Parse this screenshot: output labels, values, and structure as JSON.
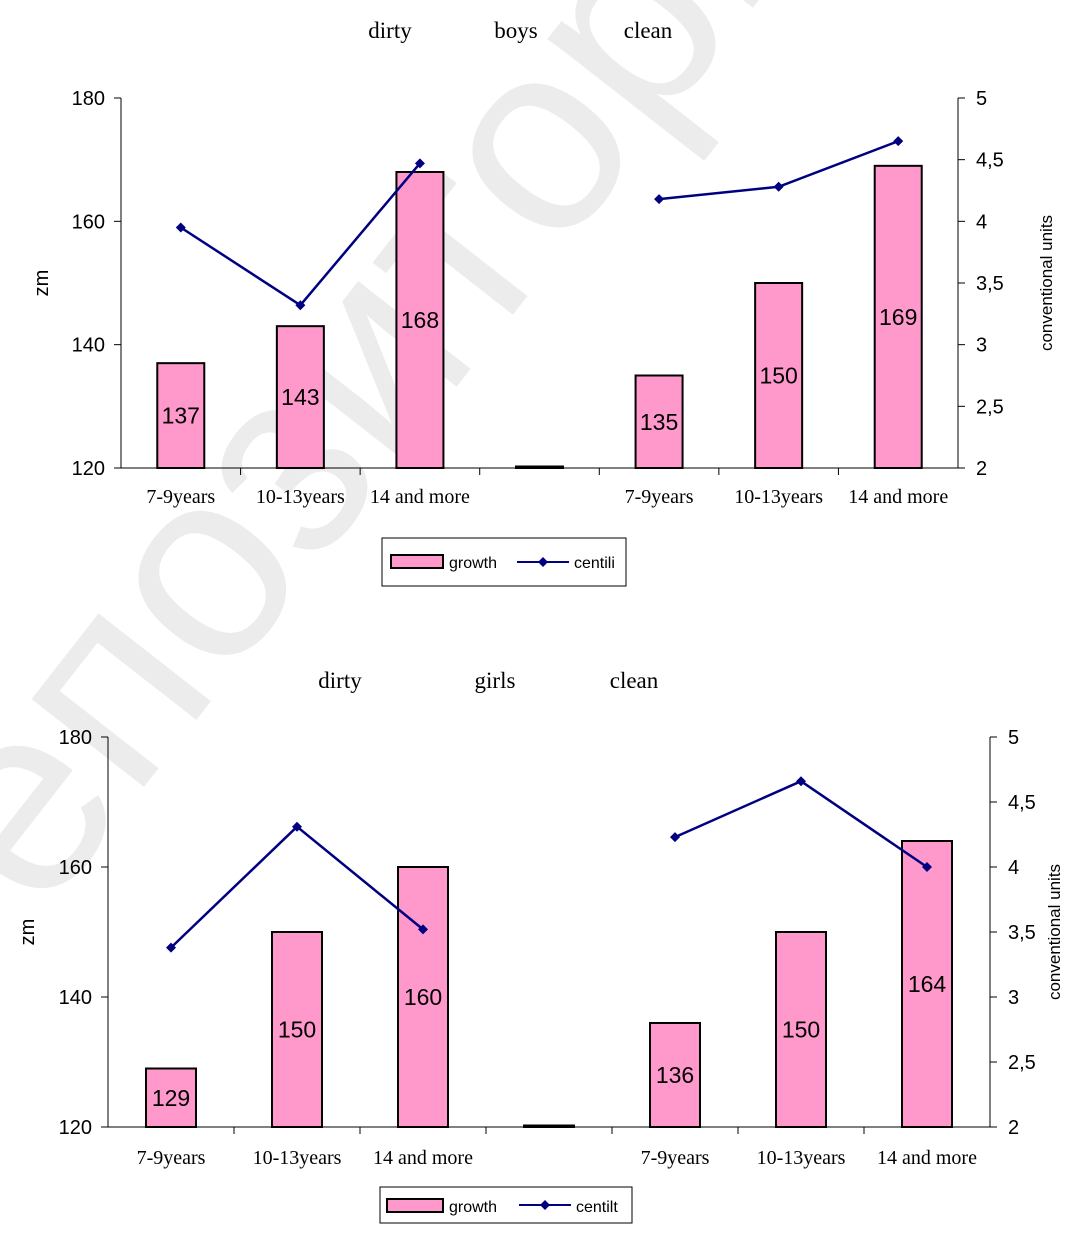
{
  "colors": {
    "bar_fill": "#ff99cc",
    "bar_stroke": "#000000",
    "line": "#000080",
    "axis": "#000000",
    "background": "#ffffff"
  },
  "watermark": "епозиторий Кар",
  "chart_data": [
    {
      "type": "bar",
      "group_titles": [
        "dirty",
        "boys",
        "clean"
      ],
      "categories": [
        "7-9years",
        "10-13years",
        "14 and more",
        "",
        "7-9years",
        "10-13years",
        "14 and more"
      ],
      "ylabel": "zm",
      "y2label": "conventional units",
      "ylim": [
        120,
        180
      ],
      "y_ticks": [
        "120",
        "140",
        "160",
        "180"
      ],
      "y2lim": [
        2,
        5
      ],
      "y2_ticks": [
        "2",
        "2,5",
        "3",
        "3,5",
        "4",
        "4,5",
        "5"
      ],
      "legend_position": "bottom-center",
      "series": [
        {
          "name": "growth",
          "kind": "bar",
          "axis": "left",
          "values": [
            137,
            143,
            168,
            120,
            135,
            150,
            169
          ],
          "labels": [
            "137",
            "143",
            "168",
            "",
            "135",
            "150",
            "169"
          ]
        },
        {
          "name": "centili",
          "kind": "line",
          "axis": "right",
          "values": [
            3.95,
            3.32,
            4.47,
            null,
            4.18,
            4.28,
            4.65
          ]
        }
      ]
    },
    {
      "type": "bar",
      "group_titles": [
        "dirty",
        "girls",
        "clean"
      ],
      "categories": [
        "7-9years",
        "10-13years",
        "14 and more",
        "",
        "7-9years",
        "10-13years",
        "14 and more"
      ],
      "ylabel": "zm",
      "y2label": "conventional units",
      "ylim": [
        120,
        180
      ],
      "y_ticks": [
        "120",
        "140",
        "160",
        "180"
      ],
      "y2lim": [
        2,
        5
      ],
      "y2_ticks": [
        "2",
        "2,5",
        "3",
        "3,5",
        "4",
        "4,5",
        "5"
      ],
      "legend_position": "bottom-center",
      "series": [
        {
          "name": "growth",
          "kind": "bar",
          "axis": "left",
          "values": [
            129,
            150,
            160,
            120,
            136,
            150,
            164
          ],
          "labels": [
            "129",
            "150",
            "160",
            "",
            "136",
            "150",
            "164"
          ]
        },
        {
          "name": "centilt",
          "kind": "line",
          "axis": "right",
          "values": [
            3.38,
            4.31,
            3.52,
            null,
            4.23,
            4.66,
            4.0
          ]
        }
      ]
    }
  ]
}
